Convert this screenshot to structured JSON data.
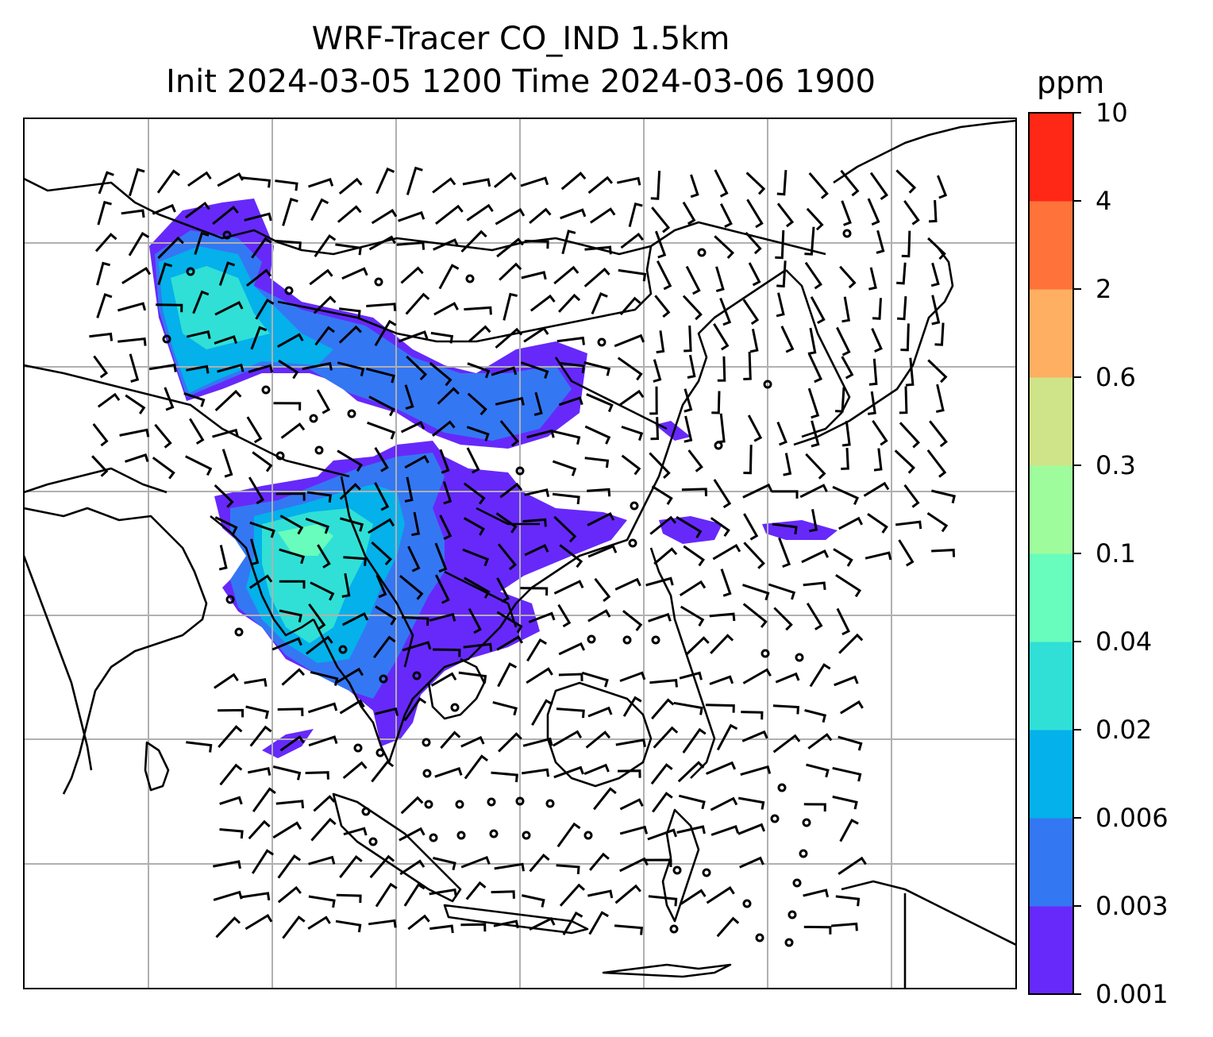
{
  "title": {
    "line1": "WRF-Tracer CO_IND 1.5km",
    "line2": "Init 2024-03-05 1200 Time 2024-03-06 1900"
  },
  "colorbar": {
    "unit": "ppm",
    "ticks": [
      "0.001",
      "0.003",
      "0.006",
      "0.02",
      "0.04",
      "0.1",
      "0.3",
      "0.6",
      "2",
      "4",
      "10"
    ],
    "colors": [
      "#6629fa",
      "#3477f3",
      "#04b1ea",
      "#30e0d6",
      "#68fcbd",
      "#9ffc9d",
      "#cfe388",
      "#ffaf61",
      "#ff7239",
      "#ff2817"
    ]
  },
  "map": {
    "gridlines": true,
    "coastline_color": "#000000",
    "grid_color": "#b0b0b0"
  }
}
